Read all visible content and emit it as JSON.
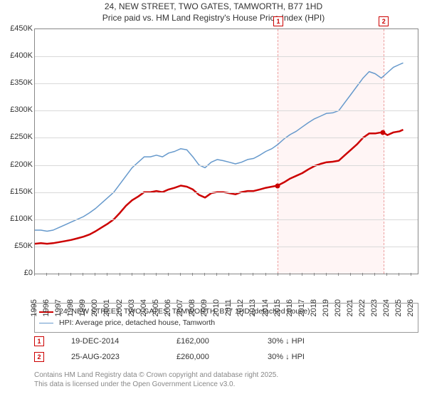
{
  "title_line1": "24, NEW STREET, TWO GATES, TAMWORTH, B77 1HD",
  "title_line2": "Price paid vs. HM Land Registry's House Price Index (HPI)",
  "chart": {
    "type": "line",
    "background_color": "#ffffff",
    "grid_color": "#d9d9d9",
    "axis_color": "#888888",
    "xlim": [
      1995,
      2026.5
    ],
    "ylim": [
      0,
      450000
    ],
    "ytick_step": 50000,
    "yticks_labels": [
      "£0",
      "£50K",
      "£100K",
      "£150K",
      "£200K",
      "£250K",
      "£300K",
      "£350K",
      "£400K",
      "£450K"
    ],
    "xticks": [
      1995,
      1996,
      1997,
      1998,
      1999,
      2000,
      2001,
      2002,
      2003,
      2004,
      2005,
      2006,
      2007,
      2008,
      2009,
      2010,
      2011,
      2012,
      2013,
      2014,
      2015,
      2016,
      2017,
      2018,
      2019,
      2020,
      2021,
      2022,
      2023,
      2024,
      2025,
      2026
    ],
    "highlight_x": [
      2014.97,
      2023.65
    ],
    "series": [
      {
        "name": "price_paid",
        "label": "24, NEW STREET, TWO GATES, TAMWORTH, B77 1HD (detached house)",
        "color": "#cc0000",
        "line_width": 2.5,
        "points": [
          [
            1995.0,
            55000
          ],
          [
            1995.5,
            56000
          ],
          [
            1996.0,
            55000
          ],
          [
            1996.5,
            56000
          ],
          [
            1997.0,
            58000
          ],
          [
            1997.5,
            60000
          ],
          [
            1998.0,
            62000
          ],
          [
            1998.5,
            65000
          ],
          [
            1999.0,
            68000
          ],
          [
            1999.5,
            72000
          ],
          [
            2000.0,
            78000
          ],
          [
            2000.5,
            85000
          ],
          [
            2001.0,
            92000
          ],
          [
            2001.5,
            100000
          ],
          [
            2002.0,
            112000
          ],
          [
            2002.5,
            125000
          ],
          [
            2003.0,
            135000
          ],
          [
            2003.5,
            142000
          ],
          [
            2004.0,
            150000
          ],
          [
            2004.5,
            150000
          ],
          [
            2005.0,
            152000
          ],
          [
            2005.5,
            150000
          ],
          [
            2006.0,
            155000
          ],
          [
            2006.5,
            158000
          ],
          [
            2007.0,
            162000
          ],
          [
            2007.5,
            160000
          ],
          [
            2008.0,
            155000
          ],
          [
            2008.5,
            145000
          ],
          [
            2009.0,
            140000
          ],
          [
            2009.5,
            148000
          ],
          [
            2010.0,
            150000
          ],
          [
            2010.5,
            150000
          ],
          [
            2011.0,
            148000
          ],
          [
            2011.5,
            146000
          ],
          [
            2012.0,
            150000
          ],
          [
            2012.5,
            152000
          ],
          [
            2013.0,
            152000
          ],
          [
            2013.5,
            155000
          ],
          [
            2014.0,
            158000
          ],
          [
            2014.5,
            160000
          ],
          [
            2014.97,
            162000
          ],
          [
            2015.5,
            168000
          ],
          [
            2016.0,
            175000
          ],
          [
            2016.5,
            180000
          ],
          [
            2017.0,
            185000
          ],
          [
            2017.5,
            192000
          ],
          [
            2018.0,
            198000
          ],
          [
            2018.5,
            202000
          ],
          [
            2019.0,
            205000
          ],
          [
            2019.5,
            206000
          ],
          [
            2020.0,
            208000
          ],
          [
            2020.5,
            218000
          ],
          [
            2021.0,
            228000
          ],
          [
            2021.5,
            238000
          ],
          [
            2022.0,
            250000
          ],
          [
            2022.5,
            258000
          ],
          [
            2023.0,
            258000
          ],
          [
            2023.5,
            260000
          ],
          [
            2023.65,
            260000
          ],
          [
            2024.0,
            255000
          ],
          [
            2024.5,
            260000
          ],
          [
            2025.0,
            262000
          ],
          [
            2025.3,
            265000
          ]
        ]
      },
      {
        "name": "hpi",
        "label": "HPI: Average price, detached house, Tamworth",
        "color": "#6699cc",
        "line_width": 1.5,
        "points": [
          [
            1995.0,
            80000
          ],
          [
            1995.5,
            80000
          ],
          [
            1996.0,
            78000
          ],
          [
            1996.5,
            80000
          ],
          [
            1997.0,
            85000
          ],
          [
            1997.5,
            90000
          ],
          [
            1998.0,
            95000
          ],
          [
            1998.5,
            100000
          ],
          [
            1999.0,
            105000
          ],
          [
            1999.5,
            112000
          ],
          [
            2000.0,
            120000
          ],
          [
            2000.5,
            130000
          ],
          [
            2001.0,
            140000
          ],
          [
            2001.5,
            150000
          ],
          [
            2002.0,
            165000
          ],
          [
            2002.5,
            180000
          ],
          [
            2003.0,
            195000
          ],
          [
            2003.5,
            205000
          ],
          [
            2004.0,
            215000
          ],
          [
            2004.5,
            215000
          ],
          [
            2005.0,
            218000
          ],
          [
            2005.5,
            215000
          ],
          [
            2006.0,
            222000
          ],
          [
            2006.5,
            225000
          ],
          [
            2007.0,
            230000
          ],
          [
            2007.5,
            228000
          ],
          [
            2008.0,
            215000
          ],
          [
            2008.5,
            200000
          ],
          [
            2009.0,
            195000
          ],
          [
            2009.5,
            205000
          ],
          [
            2010.0,
            210000
          ],
          [
            2010.5,
            208000
          ],
          [
            2011.0,
            205000
          ],
          [
            2011.5,
            202000
          ],
          [
            2012.0,
            205000
          ],
          [
            2012.5,
            210000
          ],
          [
            2013.0,
            212000
          ],
          [
            2013.5,
            218000
          ],
          [
            2014.0,
            225000
          ],
          [
            2014.5,
            230000
          ],
          [
            2015.0,
            238000
          ],
          [
            2015.5,
            248000
          ],
          [
            2016.0,
            256000
          ],
          [
            2016.5,
            262000
          ],
          [
            2017.0,
            270000
          ],
          [
            2017.5,
            278000
          ],
          [
            2018.0,
            285000
          ],
          [
            2018.5,
            290000
          ],
          [
            2019.0,
            295000
          ],
          [
            2019.5,
            296000
          ],
          [
            2020.0,
            300000
          ],
          [
            2020.5,
            315000
          ],
          [
            2021.0,
            330000
          ],
          [
            2021.5,
            345000
          ],
          [
            2022.0,
            360000
          ],
          [
            2022.5,
            372000
          ],
          [
            2023.0,
            368000
          ],
          [
            2023.5,
            360000
          ],
          [
            2024.0,
            370000
          ],
          [
            2024.5,
            380000
          ],
          [
            2025.0,
            385000
          ],
          [
            2025.3,
            388000
          ]
        ]
      }
    ],
    "sale_markers": [
      {
        "id": "1",
        "x": 2014.97,
        "y": 162000
      },
      {
        "id": "2",
        "x": 2023.65,
        "y": 260000
      }
    ]
  },
  "legend": {
    "items": [
      {
        "color": "#cc0000",
        "thickness": 2.5,
        "label_ref": "chart.series.0.label"
      },
      {
        "color": "#6699cc",
        "thickness": 1.5,
        "label_ref": "chart.series.1.label"
      }
    ]
  },
  "sales": [
    {
      "marker": "1",
      "date": "19-DEC-2014",
      "price": "£162,000",
      "delta": "30% ↓ HPI"
    },
    {
      "marker": "2",
      "date": "25-AUG-2023",
      "price": "£260,000",
      "delta": "30% ↓ HPI"
    }
  ],
  "attribution_line1": "Contains HM Land Registry data © Crown copyright and database right 2025.",
  "attribution_line2": "This data is licensed under the Open Government Licence v3.0."
}
